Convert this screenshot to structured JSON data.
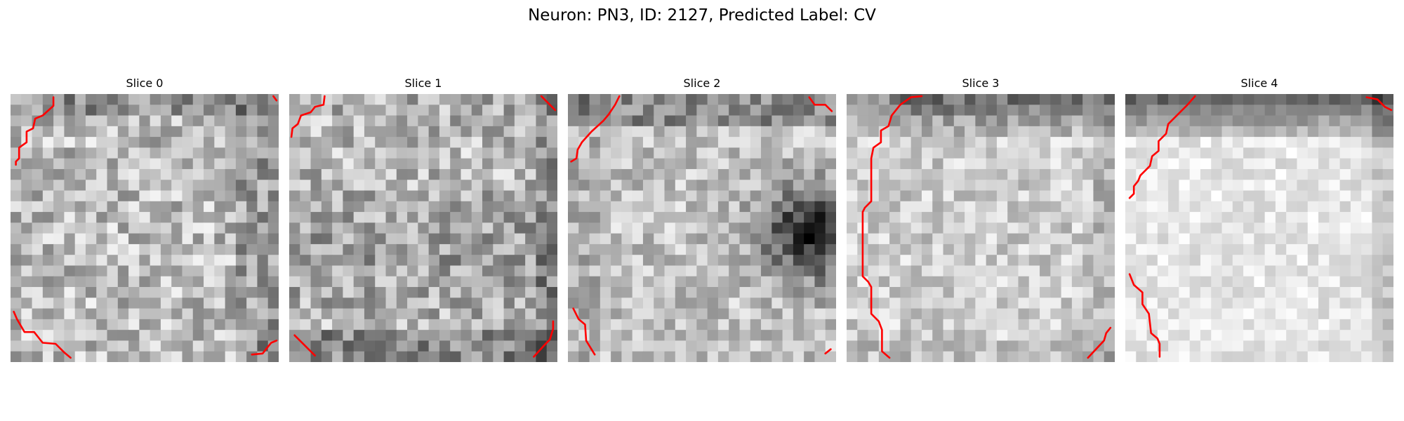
{
  "figure": {
    "suptitle": "Neuron: PN3, ID: 2127, Predicted Label: CV",
    "contour_color": "#ff0000",
    "colormap": "grayscale",
    "grid_size": 25
  },
  "slices": [
    {
      "title": "Slice 0"
    },
    {
      "title": "Slice 1"
    },
    {
      "title": "Slice 2"
    },
    {
      "title": "Slice 3"
    },
    {
      "title": "Slice 4"
    }
  ]
}
